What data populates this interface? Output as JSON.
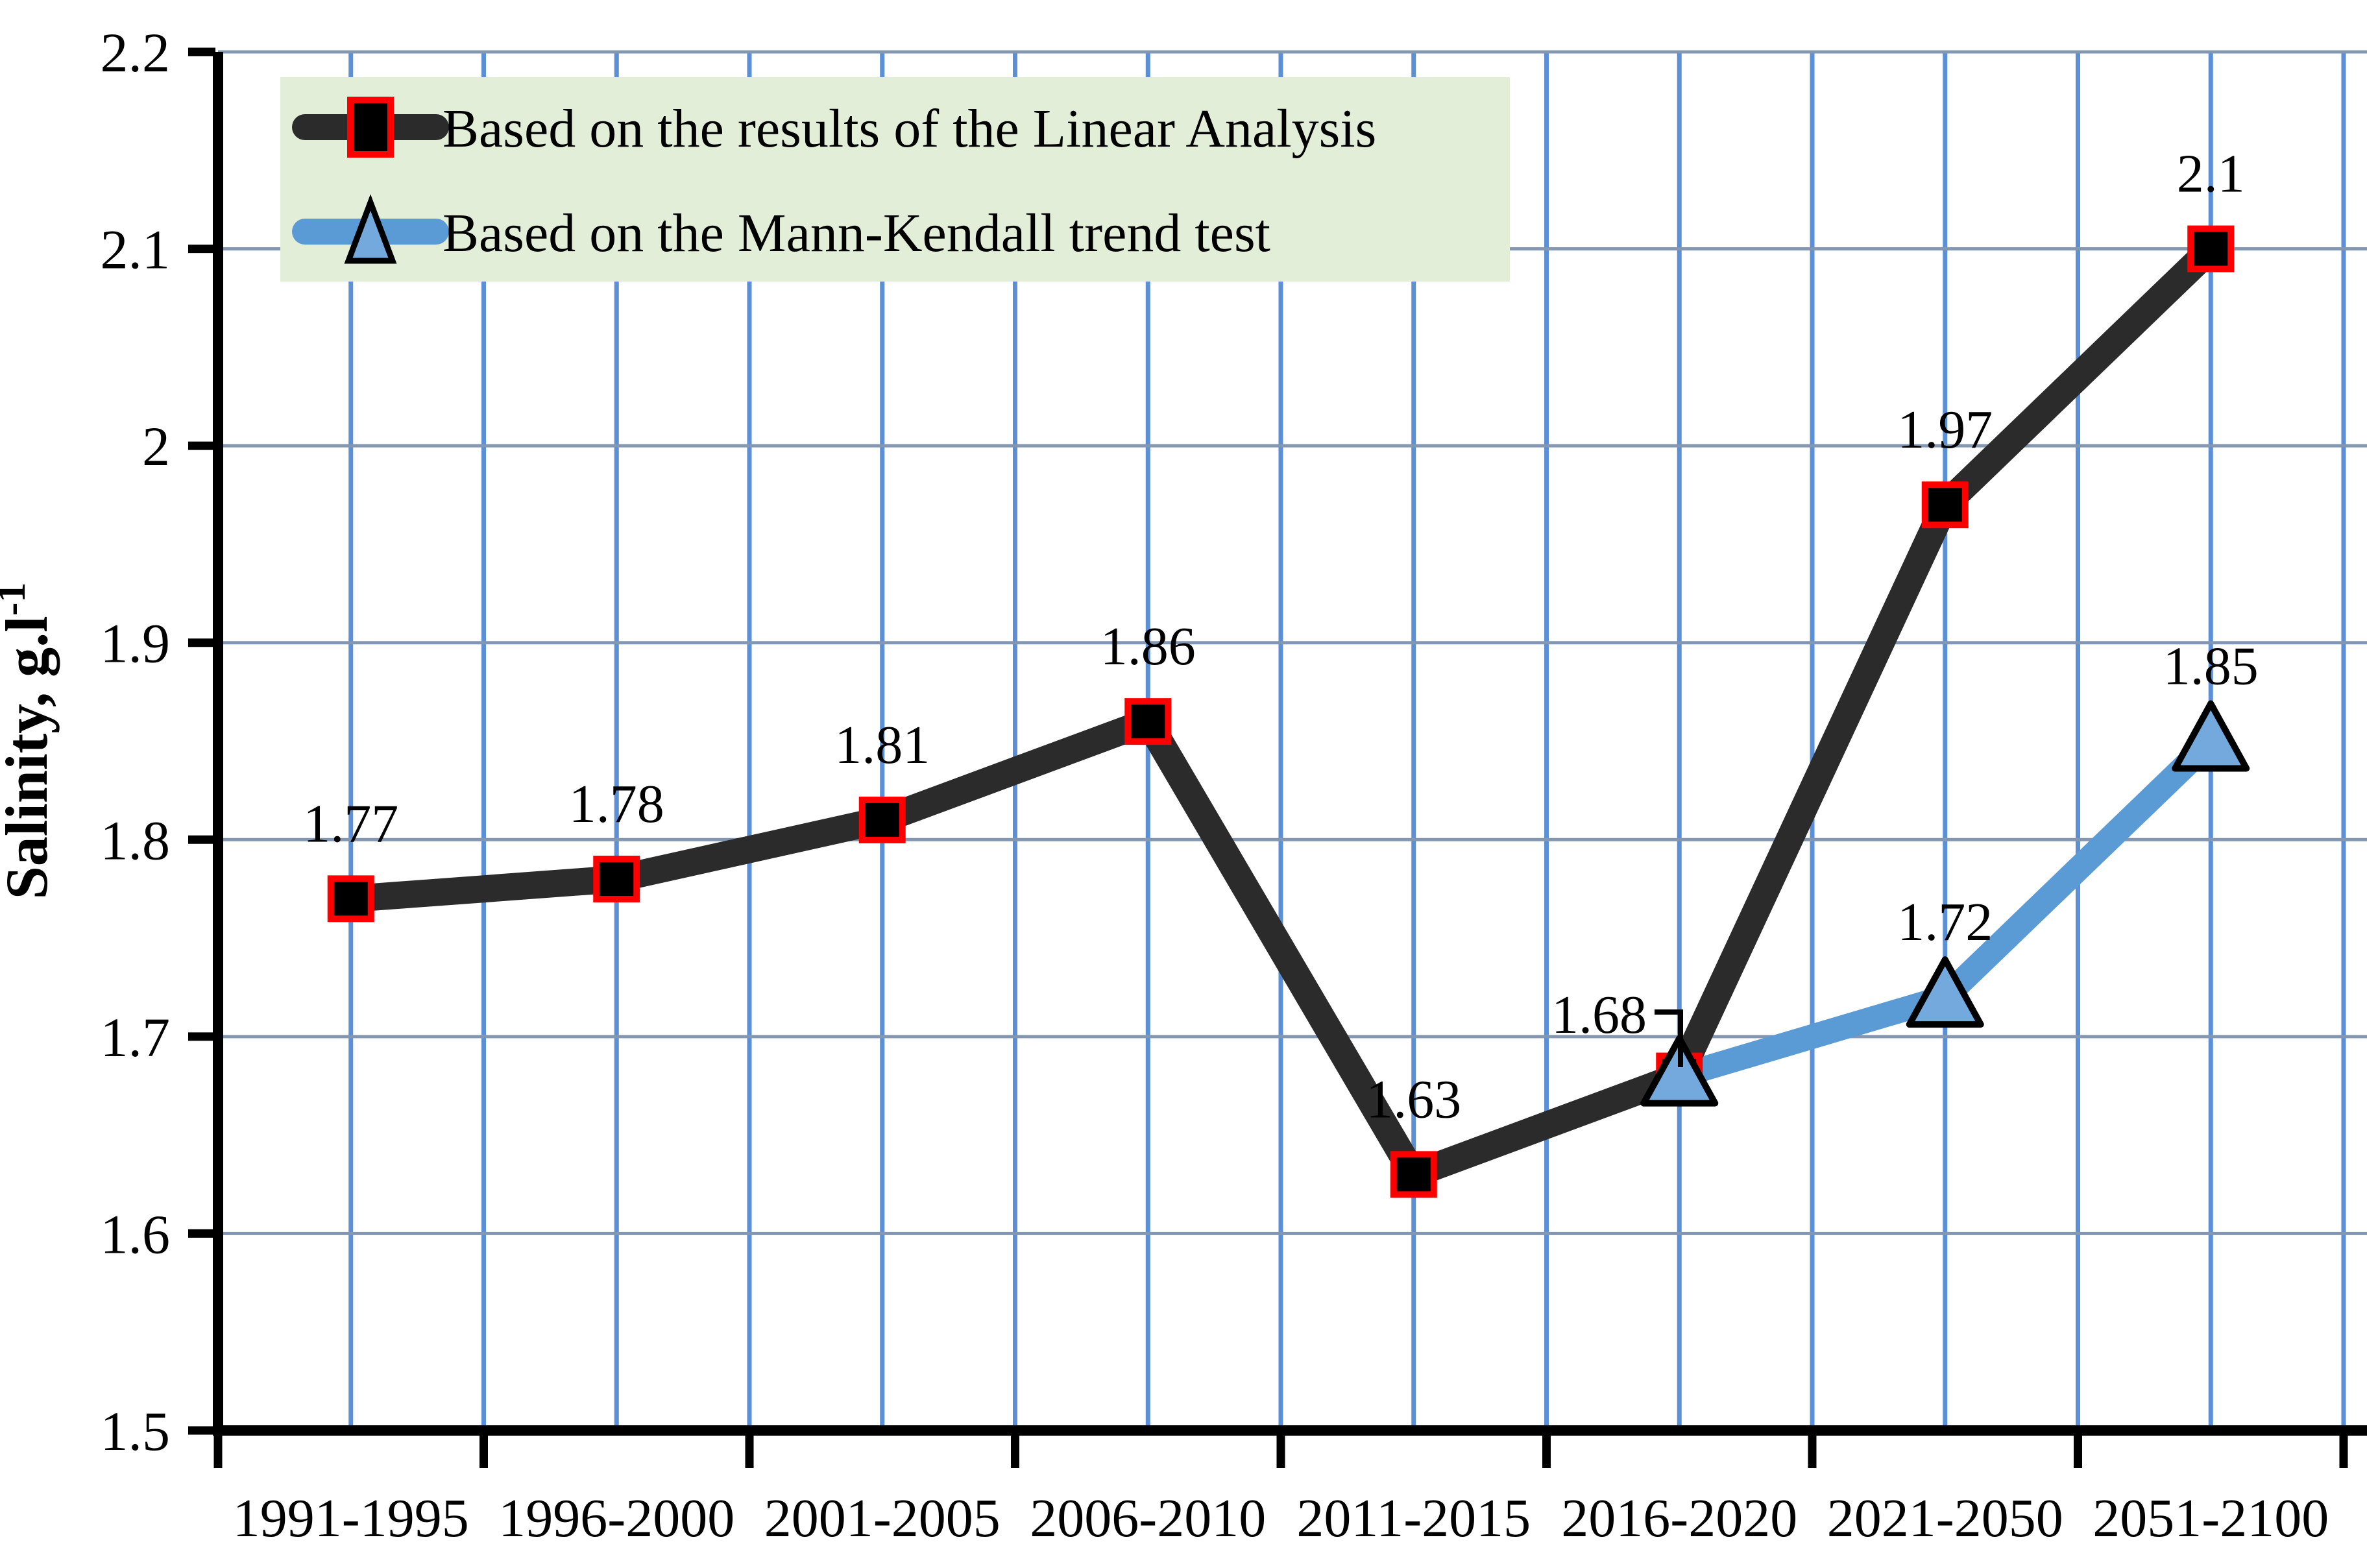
{
  "chart_data": {
    "type": "line",
    "categories": [
      "1991-1995",
      "1996-2000",
      "2001-2005",
      "2006-2010",
      "2011-2015",
      "2016-2020",
      "2021-2050",
      "2051-2100"
    ],
    "series": [
      {
        "name": "Based on the results of the Linear Analysis",
        "line_color": "#2b2b2b",
        "marker": "square",
        "marker_fill": "#000000",
        "marker_border": "#ff0000",
        "values": [
          1.77,
          1.78,
          1.81,
          1.86,
          1.63,
          1.68,
          1.97,
          2.1
        ],
        "point_labels": [
          "1.77",
          "1.78",
          "1.81",
          "1.86",
          "1.63",
          null,
          "1.97",
          "2.1"
        ]
      },
      {
        "name": "Based on the Mann-Kendall trend test",
        "line_color": "#5b9bd5",
        "marker": "triangle",
        "marker_fill": "#74a9dd",
        "marker_border": "#000000",
        "values": [
          null,
          null,
          null,
          null,
          null,
          1.68,
          1.72,
          1.85
        ],
        "point_labels": [
          null,
          null,
          null,
          null,
          null,
          null,
          "1.72",
          "1.85"
        ]
      }
    ],
    "callout_label": {
      "text": "1.68",
      "category_index": 5,
      "value": 1.68
    },
    "ylabel": "Salinity, g.l-1",
    "ylabel_base": "Salinity, g.l",
    "ylabel_sup": "-1",
    "ylim": [
      1.5,
      2.2
    ],
    "yticks": [
      {
        "v": 2.2,
        "label": "2.2"
      },
      {
        "v": 2.1,
        "label": "2.1"
      },
      {
        "v": 2.0,
        "label": "2"
      },
      {
        "v": 1.9,
        "label": "1.9"
      },
      {
        "v": 1.8,
        "label": "1.8"
      },
      {
        "v": 1.7,
        "label": "1.7"
      },
      {
        "v": 1.6,
        "label": "1.6"
      },
      {
        "v": 1.5,
        "label": "1.5"
      }
    ],
    "grid": {
      "horizontal": true,
      "vertical": true,
      "h_color": "#8497b2",
      "v_color": "#5b8fd6"
    },
    "legend": {
      "position": "top-left",
      "bg": "#e3eed9"
    },
    "axis_color": "#000000"
  }
}
